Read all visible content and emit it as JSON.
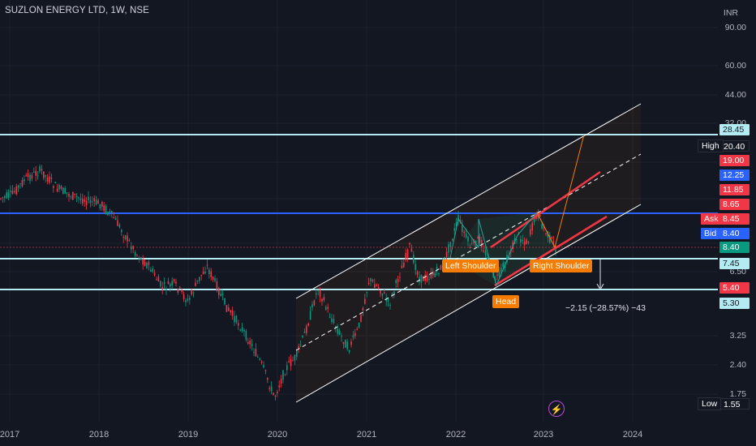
{
  "chart": {
    "title": "SUZLON ENERGY LTD, 1W, NSE",
    "currency": "INR"
  },
  "price_axis": {
    "ticks": [
      "90.00",
      "60.00",
      "44.00",
      "32.00",
      "6.50",
      "3.25",
      "2.40",
      "1.75"
    ]
  },
  "time_axis": {
    "ticks": [
      "2017",
      "2018",
      "2019",
      "2020",
      "2021",
      "2022",
      "2023",
      "2024"
    ]
  },
  "level_tags": [
    {
      "value": "28.45",
      "bg": "#b2ebf2",
      "fg": "#131722"
    },
    {
      "value": "20.40",
      "bg": "#131722",
      "fg": "#ffffff"
    },
    {
      "value": "19.00",
      "bg": "#f23645",
      "fg": "#ffffff"
    },
    {
      "value": "12.25",
      "bg": "#2962ff",
      "fg": "#ffffff"
    },
    {
      "value": "11.85",
      "bg": "#f23645",
      "fg": "#ffffff"
    },
    {
      "value": "8.65",
      "bg": "#f23645",
      "fg": "#ffffff"
    },
    {
      "value": "8.45",
      "bg": "#f23645",
      "fg": "#ffffff"
    },
    {
      "value": "8.40",
      "bg": "#2962ff",
      "fg": "#ffffff"
    },
    {
      "value": "8.40",
      "bg": "#089981",
      "fg": "#ffffff"
    },
    {
      "value": "7.45",
      "bg": "#b2ebf2",
      "fg": "#131722"
    },
    {
      "value": "5.40",
      "bg": "#f23645",
      "fg": "#ffffff"
    },
    {
      "value": "5.30",
      "bg": "#b2ebf2",
      "fg": "#131722"
    },
    {
      "value": "1.55",
      "bg": "#131722",
      "fg": "#ffffff"
    }
  ],
  "labels": {
    "high": "High",
    "ask": "Ask",
    "bid": "Bid",
    "low": "Low"
  },
  "annotations": {
    "left_shoulder": "Left Shoulder",
    "head": "Head",
    "right_shoulder": "Right Shoulder",
    "measure": "−2.15 (−28.57%) −43"
  },
  "colors": {
    "background": "#131722",
    "up_candle": "#089981",
    "down_candle": "#f23645",
    "channel": "#ffffff",
    "horizontal_levels": "#b2ebf2",
    "blue_level": "#2962ff",
    "neckline": "#f23645",
    "projection": "#f57c00"
  },
  "icons": {
    "alert": "lightning-bolt-icon"
  }
}
